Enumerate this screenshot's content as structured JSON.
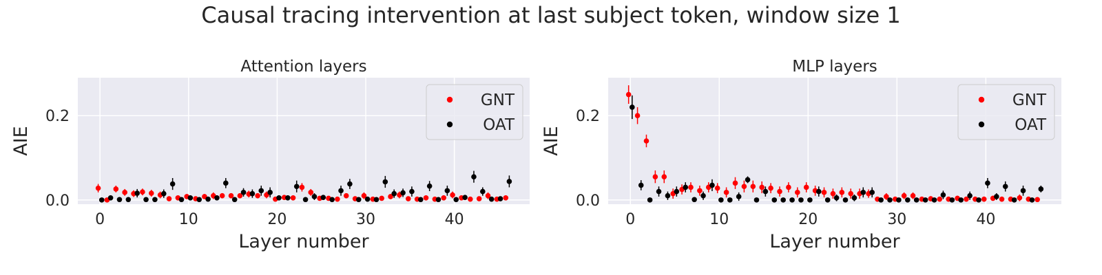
{
  "figure": {
    "title": "Causal tracing intervention at last subject token, window size 1"
  },
  "chart_data": [
    {
      "type": "scatter",
      "title": "Attention layers",
      "xlabel": "Layer number",
      "ylabel": "AIE",
      "xlim": [
        -2.5,
        48.5
      ],
      "ylim": [
        -0.01,
        0.29
      ],
      "xticks": [
        0,
        10,
        20,
        30,
        40
      ],
      "xtick_labels": [
        "0",
        "10",
        "20",
        "30",
        "40"
      ],
      "yticks": [
        0.0,
        0.2
      ],
      "ytick_labels": [
        "0.0",
        "0.2"
      ],
      "grid": true,
      "legend_position": "upper right",
      "series": [
        {
          "name": "GNT",
          "color": "#ff0000",
          "x": [
            -0.2,
            0.8,
            1.8,
            2.8,
            3.8,
            4.8,
            5.8,
            6.8,
            7.8,
            8.8,
            9.8,
            10.8,
            11.8,
            12.8,
            13.8,
            14.8,
            15.8,
            16.8,
            17.8,
            18.8,
            19.8,
            20.8,
            21.8,
            22.8,
            23.8,
            24.8,
            25.8,
            26.8,
            27.8,
            28.8,
            29.8,
            30.8,
            31.8,
            32.8,
            33.8,
            34.8,
            35.8,
            36.8,
            37.8,
            38.8,
            39.8,
            40.8,
            41.8,
            42.8,
            43.8,
            44.8,
            45.8
          ],
          "y": [
            0.028,
            0.0,
            0.026,
            0.018,
            0.015,
            0.019,
            0.016,
            0.012,
            0.003,
            0.005,
            0.008,
            0.003,
            0.008,
            0.01,
            0.01,
            0.01,
            0.01,
            0.014,
            0.01,
            0.012,
            0.002,
            0.006,
            0.005,
            0.03,
            0.018,
            0.004,
            0.004,
            0.002,
            0.01,
            0.003,
            0.01,
            0.002,
            0.004,
            0.008,
            0.012,
            0.003,
            0.002,
            0.005,
            0.002,
            0.005,
            0.012,
            0.005,
            0.002,
            0.003,
            0.01,
            0.002,
            0.005
          ],
          "err": [
            0.01,
            0.004,
            0.008,
            0.008,
            0.008,
            0.008,
            0.008,
            0.008,
            0.004,
            0.004,
            0.006,
            0.004,
            0.006,
            0.008,
            0.006,
            0.006,
            0.006,
            0.008,
            0.006,
            0.008,
            0.004,
            0.006,
            0.006,
            0.01,
            0.008,
            0.004,
            0.004,
            0.004,
            0.006,
            0.004,
            0.008,
            0.004,
            0.004,
            0.006,
            0.008,
            0.004,
            0.004,
            0.006,
            0.004,
            0.006,
            0.008,
            0.006,
            0.004,
            0.004,
            0.008,
            0.004,
            0.006
          ]
        },
        {
          "name": "OAT",
          "color": "#000000",
          "x": [
            0.2,
            1.2,
            2.2,
            3.2,
            4.2,
            5.2,
            6.2,
            7.2,
            8.2,
            9.2,
            10.2,
            11.2,
            12.2,
            13.2,
            14.2,
            15.2,
            16.2,
            17.2,
            18.2,
            19.2,
            20.2,
            21.2,
            22.2,
            23.2,
            24.2,
            25.2,
            26.2,
            27.2,
            28.2,
            29.2,
            30.2,
            31.2,
            32.2,
            33.2,
            34.2,
            35.2,
            36.2,
            37.2,
            38.2,
            39.2,
            40.2,
            41.2,
            42.2,
            43.2,
            44.2,
            45.2,
            46.2
          ],
          "y": [
            0.0,
            0.005,
            0.001,
            0.001,
            0.016,
            0.001,
            0.001,
            0.015,
            0.038,
            0.001,
            0.005,
            0.001,
            0.002,
            0.005,
            0.04,
            0.001,
            0.018,
            0.015,
            0.022,
            0.018,
            0.005,
            0.005,
            0.032,
            0.001,
            0.008,
            0.006,
            0.001,
            0.022,
            0.038,
            0.001,
            0.002,
            0.001,
            0.043,
            0.015,
            0.017,
            0.02,
            0.001,
            0.033,
            0.001,
            0.022,
            0.001,
            0.006,
            0.055,
            0.02,
            0.002,
            0.003,
            0.044
          ],
          "err": [
            0.003,
            0.006,
            0.003,
            0.003,
            0.01,
            0.003,
            0.003,
            0.01,
            0.014,
            0.003,
            0.006,
            0.003,
            0.004,
            0.006,
            0.012,
            0.003,
            0.01,
            0.01,
            0.012,
            0.012,
            0.006,
            0.006,
            0.014,
            0.003,
            0.008,
            0.006,
            0.003,
            0.012,
            0.012,
            0.003,
            0.004,
            0.003,
            0.014,
            0.01,
            0.01,
            0.012,
            0.003,
            0.012,
            0.003,
            0.012,
            0.003,
            0.006,
            0.014,
            0.01,
            0.004,
            0.004,
            0.014
          ]
        }
      ]
    },
    {
      "type": "scatter",
      "title": "MLP layers",
      "xlabel": "Layer number",
      "ylabel": "AIE",
      "xlim": [
        -2.5,
        48.5
      ],
      "ylim": [
        -0.01,
        0.29
      ],
      "xticks": [
        0,
        10,
        20,
        30,
        40
      ],
      "xtick_labels": [
        "0",
        "10",
        "20",
        "30",
        "40"
      ],
      "yticks": [
        0.0,
        0.2
      ],
      "ytick_labels": [
        "0.0",
        "0.2"
      ],
      "grid": true,
      "legend_position": "upper right",
      "series": [
        {
          "name": "GNT",
          "color": "#ff0000",
          "x": [
            -0.2,
            0.8,
            1.8,
            2.8,
            3.8,
            4.8,
            5.8,
            6.8,
            7.8,
            8.8,
            9.8,
            10.8,
            11.8,
            12.8,
            13.8,
            14.8,
            15.8,
            16.8,
            17.8,
            18.8,
            19.8,
            20.8,
            21.8,
            22.8,
            23.8,
            24.8,
            25.8,
            26.8,
            27.8,
            28.8,
            29.8,
            30.8,
            31.8,
            32.8,
            33.8,
            34.8,
            35.8,
            36.8,
            37.8,
            38.8,
            39.8,
            40.8,
            41.8,
            42.8,
            43.8,
            44.8,
            45.8
          ],
          "y": [
            0.25,
            0.2,
            0.14,
            0.055,
            0.055,
            0.015,
            0.025,
            0.03,
            0.022,
            0.03,
            0.028,
            0.018,
            0.04,
            0.032,
            0.032,
            0.03,
            0.028,
            0.02,
            0.03,
            0.018,
            0.03,
            0.022,
            0.018,
            0.015,
            0.018,
            0.015,
            0.015,
            0.015,
            0.002,
            0.008,
            0.002,
            0.01,
            0.01,
            0.002,
            0.003,
            0.002,
            0.002,
            0.004,
            0.002,
            0.002,
            0.002,
            0.004,
            0.002,
            0.002,
            0.005,
            0.002,
            0.001
          ],
          "err": [
            0.022,
            0.02,
            0.015,
            0.015,
            0.015,
            0.012,
            0.012,
            0.012,
            0.012,
            0.012,
            0.012,
            0.012,
            0.014,
            0.014,
            0.014,
            0.014,
            0.012,
            0.012,
            0.012,
            0.012,
            0.012,
            0.012,
            0.012,
            0.012,
            0.012,
            0.012,
            0.012,
            0.01,
            0.006,
            0.008,
            0.006,
            0.008,
            0.008,
            0.006,
            0.006,
            0.006,
            0.006,
            0.006,
            0.006,
            0.006,
            0.006,
            0.006,
            0.006,
            0.006,
            0.008,
            0.006,
            0.004
          ]
        },
        {
          "name": "OAT",
          "color": "#000000",
          "x": [
            0.2,
            1.2,
            2.2,
            3.2,
            4.2,
            5.2,
            6.2,
            7.2,
            8.2,
            9.2,
            10.2,
            11.2,
            12.2,
            13.2,
            14.2,
            15.2,
            16.2,
            17.2,
            18.2,
            19.2,
            20.2,
            21.2,
            22.2,
            23.2,
            24.2,
            25.2,
            26.2,
            27.2,
            28.2,
            29.2,
            30.2,
            31.2,
            32.2,
            33.2,
            34.2,
            35.2,
            36.2,
            37.2,
            38.2,
            39.2,
            40.2,
            41.2,
            42.2,
            43.2,
            44.2,
            45.2,
            46.2
          ],
          "y": [
            0.22,
            0.035,
            0.0,
            0.02,
            0.01,
            0.02,
            0.03,
            0.001,
            0.01,
            0.035,
            0.0,
            0.0,
            0.008,
            0.048,
            0.0,
            0.02,
            0.0,
            0.0,
            0.0,
            0.0,
            0.0,
            0.02,
            0.0,
            0.005,
            0.0,
            0.005,
            0.018,
            0.018,
            0.0,
            0.0,
            0.0,
            0.0,
            0.0,
            0.0,
            0.0,
            0.012,
            0.0,
            0.0,
            0.01,
            0.0,
            0.04,
            0.008,
            0.032,
            0.0,
            0.022,
            0.0,
            0.026
          ],
          "err": [
            0.028,
            0.012,
            0.004,
            0.012,
            0.01,
            0.012,
            0.012,
            0.004,
            0.01,
            0.014,
            0.004,
            0.004,
            0.01,
            0.008,
            0.004,
            0.012,
            0.004,
            0.004,
            0.004,
            0.004,
            0.004,
            0.012,
            0.004,
            0.008,
            0.004,
            0.008,
            0.012,
            0.012,
            0.004,
            0.004,
            0.004,
            0.004,
            0.004,
            0.004,
            0.004,
            0.01,
            0.004,
            0.004,
            0.01,
            0.004,
            0.012,
            0.008,
            0.012,
            0.004,
            0.012,
            0.004,
            0.008
          ]
        }
      ]
    }
  ]
}
